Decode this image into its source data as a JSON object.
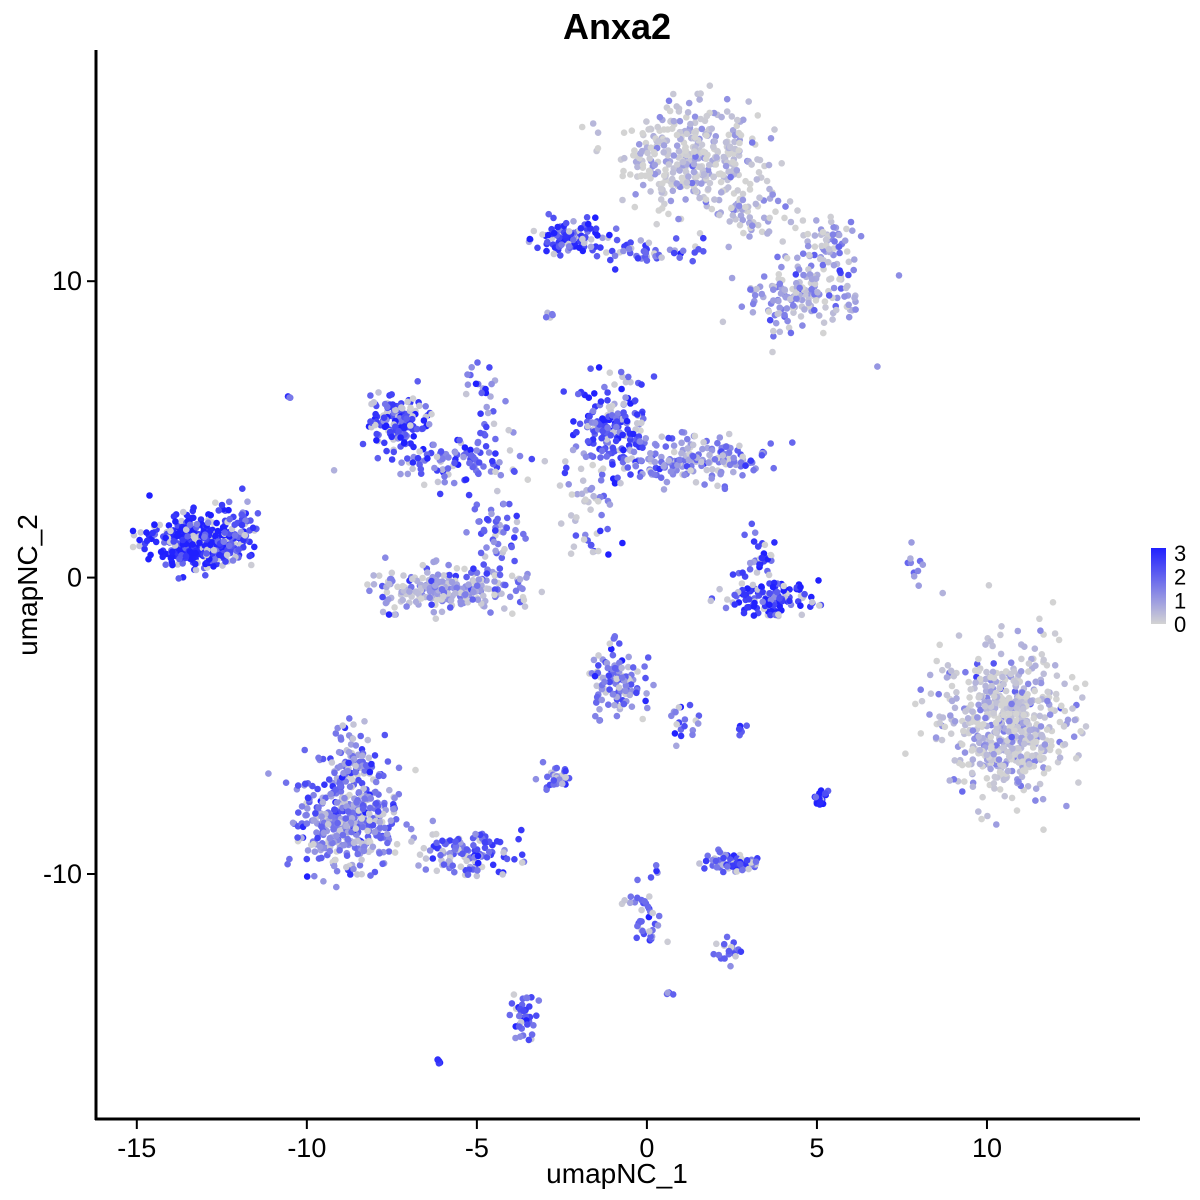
{
  "chart_data": {
    "type": "scatter",
    "title": "Anxa2",
    "xlabel": "umapNC_1",
    "ylabel": "umapNC_2",
    "xlim": [
      -16.2,
      14.5
    ],
    "ylim": [
      -18.3,
      17.8
    ],
    "xticks": [
      -15,
      -10,
      -5,
      0,
      5,
      10
    ],
    "yticks": [
      -10,
      0,
      10
    ],
    "grid": false,
    "color_scale": {
      "low": "#d3d3d3",
      "high": "#2020ff",
      "min": 0,
      "max": 3.2,
      "legend_ticks": [
        0,
        1,
        2,
        3
      ],
      "legend_position": "right"
    },
    "clusters": [
      {
        "x": 1.3,
        "y": 14.2,
        "sx": 1.2,
        "sy": 1.0,
        "n": 380,
        "expr": 0.15
      },
      {
        "x": 4.6,
        "y": 9.5,
        "sx": 1.0,
        "sy": 0.7,
        "n": 160,
        "expr": 0.9
      },
      {
        "x": 5.4,
        "y": 11.2,
        "sx": 0.5,
        "sy": 0.5,
        "n": 60,
        "expr": 1.0
      },
      {
        "x": 3.0,
        "y": 12.2,
        "sx": 0.9,
        "sy": 0.6,
        "n": 70,
        "expr": 0.4
      },
      {
        "x": -2.3,
        "y": 11.5,
        "sx": 0.6,
        "sy": 0.35,
        "n": 110,
        "expr": 2.5
      },
      {
        "x": 0.2,
        "y": 11.0,
        "sx": 1.2,
        "sy": 0.25,
        "n": 45,
        "expr": 2.0
      },
      {
        "x": -2.8,
        "y": 8.8,
        "sx": 0.1,
        "sy": 0.1,
        "n": 5,
        "expr": 2.0
      },
      {
        "x": -13.2,
        "y": 1.2,
        "sx": 0.9,
        "sy": 0.55,
        "n": 380,
        "expr": 3.0
      },
      {
        "x": -12.0,
        "y": 1.6,
        "sx": 0.4,
        "sy": 0.7,
        "n": 40,
        "expr": 2.0
      },
      {
        "x": -7.3,
        "y": 5.3,
        "sx": 0.5,
        "sy": 0.5,
        "n": 160,
        "expr": 2.5
      },
      {
        "x": -5.7,
        "y": 4.0,
        "sx": 1.4,
        "sy": 0.5,
        "n": 100,
        "expr": 2.0
      },
      {
        "x": -4.8,
        "y": 6.0,
        "sx": 0.5,
        "sy": 1.0,
        "n": 30,
        "expr": 1.8
      },
      {
        "x": -5.8,
        "y": -0.4,
        "sx": 1.5,
        "sy": 0.45,
        "n": 230,
        "expr": 0.9
      },
      {
        "x": -4.5,
        "y": 1.6,
        "sx": 0.5,
        "sy": 1.0,
        "n": 60,
        "expr": 1.8
      },
      {
        "x": -1.0,
        "y": 5.0,
        "sx": 0.8,
        "sy": 1.0,
        "n": 180,
        "expr": 2.3
      },
      {
        "x": 1.5,
        "y": 4.0,
        "sx": 1.4,
        "sy": 0.5,
        "n": 170,
        "expr": 1.3
      },
      {
        "x": -1.8,
        "y": 2.8,
        "sx": 0.6,
        "sy": 0.8,
        "n": 30,
        "expr": 0.8
      },
      {
        "x": -1.7,
        "y": 1.2,
        "sx": 0.6,
        "sy": 0.3,
        "n": 15,
        "expr": 2.6
      },
      {
        "x": 3.6,
        "y": -0.7,
        "sx": 0.9,
        "sy": 0.35,
        "n": 130,
        "expr": 2.8
      },
      {
        "x": 3.3,
        "y": 0.8,
        "sx": 0.3,
        "sy": 0.6,
        "n": 30,
        "expr": 2.3
      },
      {
        "x": 7.9,
        "y": 0.4,
        "sx": 0.15,
        "sy": 0.5,
        "n": 10,
        "expr": 1.2
      },
      {
        "x": 10.6,
        "y": -4.8,
        "sx": 1.2,
        "sy": 1.5,
        "n": 600,
        "expr": 0.35
      },
      {
        "x": -0.8,
        "y": -3.5,
        "sx": 0.55,
        "sy": 0.7,
        "n": 120,
        "expr": 1.8
      },
      {
        "x": 1.0,
        "y": -4.8,
        "sx": 0.5,
        "sy": 0.4,
        "n": 20,
        "expr": 1.6
      },
      {
        "x": -8.8,
        "y": -8.2,
        "sx": 1.0,
        "sy": 1.0,
        "n": 420,
        "expr": 1.5
      },
      {
        "x": -8.6,
        "y": -6.2,
        "sx": 0.45,
        "sy": 0.8,
        "n": 80,
        "expr": 1.6
      },
      {
        "x": -5.3,
        "y": -9.3,
        "sx": 1.0,
        "sy": 0.45,
        "n": 120,
        "expr": 2.1
      },
      {
        "x": -2.7,
        "y": -6.8,
        "sx": 0.3,
        "sy": 0.25,
        "n": 30,
        "expr": 1.8
      },
      {
        "x": 2.5,
        "y": -9.6,
        "sx": 0.5,
        "sy": 0.2,
        "n": 70,
        "expr": 2.0
      },
      {
        "x": 0.0,
        "y": -11.3,
        "sx": 0.35,
        "sy": 0.7,
        "n": 40,
        "expr": 2.0
      },
      {
        "x": 2.4,
        "y": -12.6,
        "sx": 0.25,
        "sy": 0.25,
        "n": 20,
        "expr": 2.0
      },
      {
        "x": -3.6,
        "y": -14.7,
        "sx": 0.25,
        "sy": 0.6,
        "n": 40,
        "expr": 2.3
      },
      {
        "x": 5.1,
        "y": -7.4,
        "sx": 0.12,
        "sy": 0.25,
        "n": 20,
        "expr": 3.0
      },
      {
        "x": 2.8,
        "y": -5.1,
        "sx": 0.15,
        "sy": 0.1,
        "n": 6,
        "expr": 2.0
      },
      {
        "x": -6.1,
        "y": -16.3,
        "sx": 0.1,
        "sy": 0.08,
        "n": 5,
        "expr": 2.5
      },
      {
        "x": 0.6,
        "y": -14.0,
        "sx": 0.1,
        "sy": 0.08,
        "n": 4,
        "expr": 2.0
      },
      {
        "x": -10.5,
        "y": 6.1,
        "sx": 0.05,
        "sy": 0.05,
        "n": 3,
        "expr": 2.0
      },
      {
        "x": 6.8,
        "y": 7.1,
        "sx": 0.05,
        "sy": 0.05,
        "n": 1,
        "expr": 2.0
      }
    ]
  }
}
